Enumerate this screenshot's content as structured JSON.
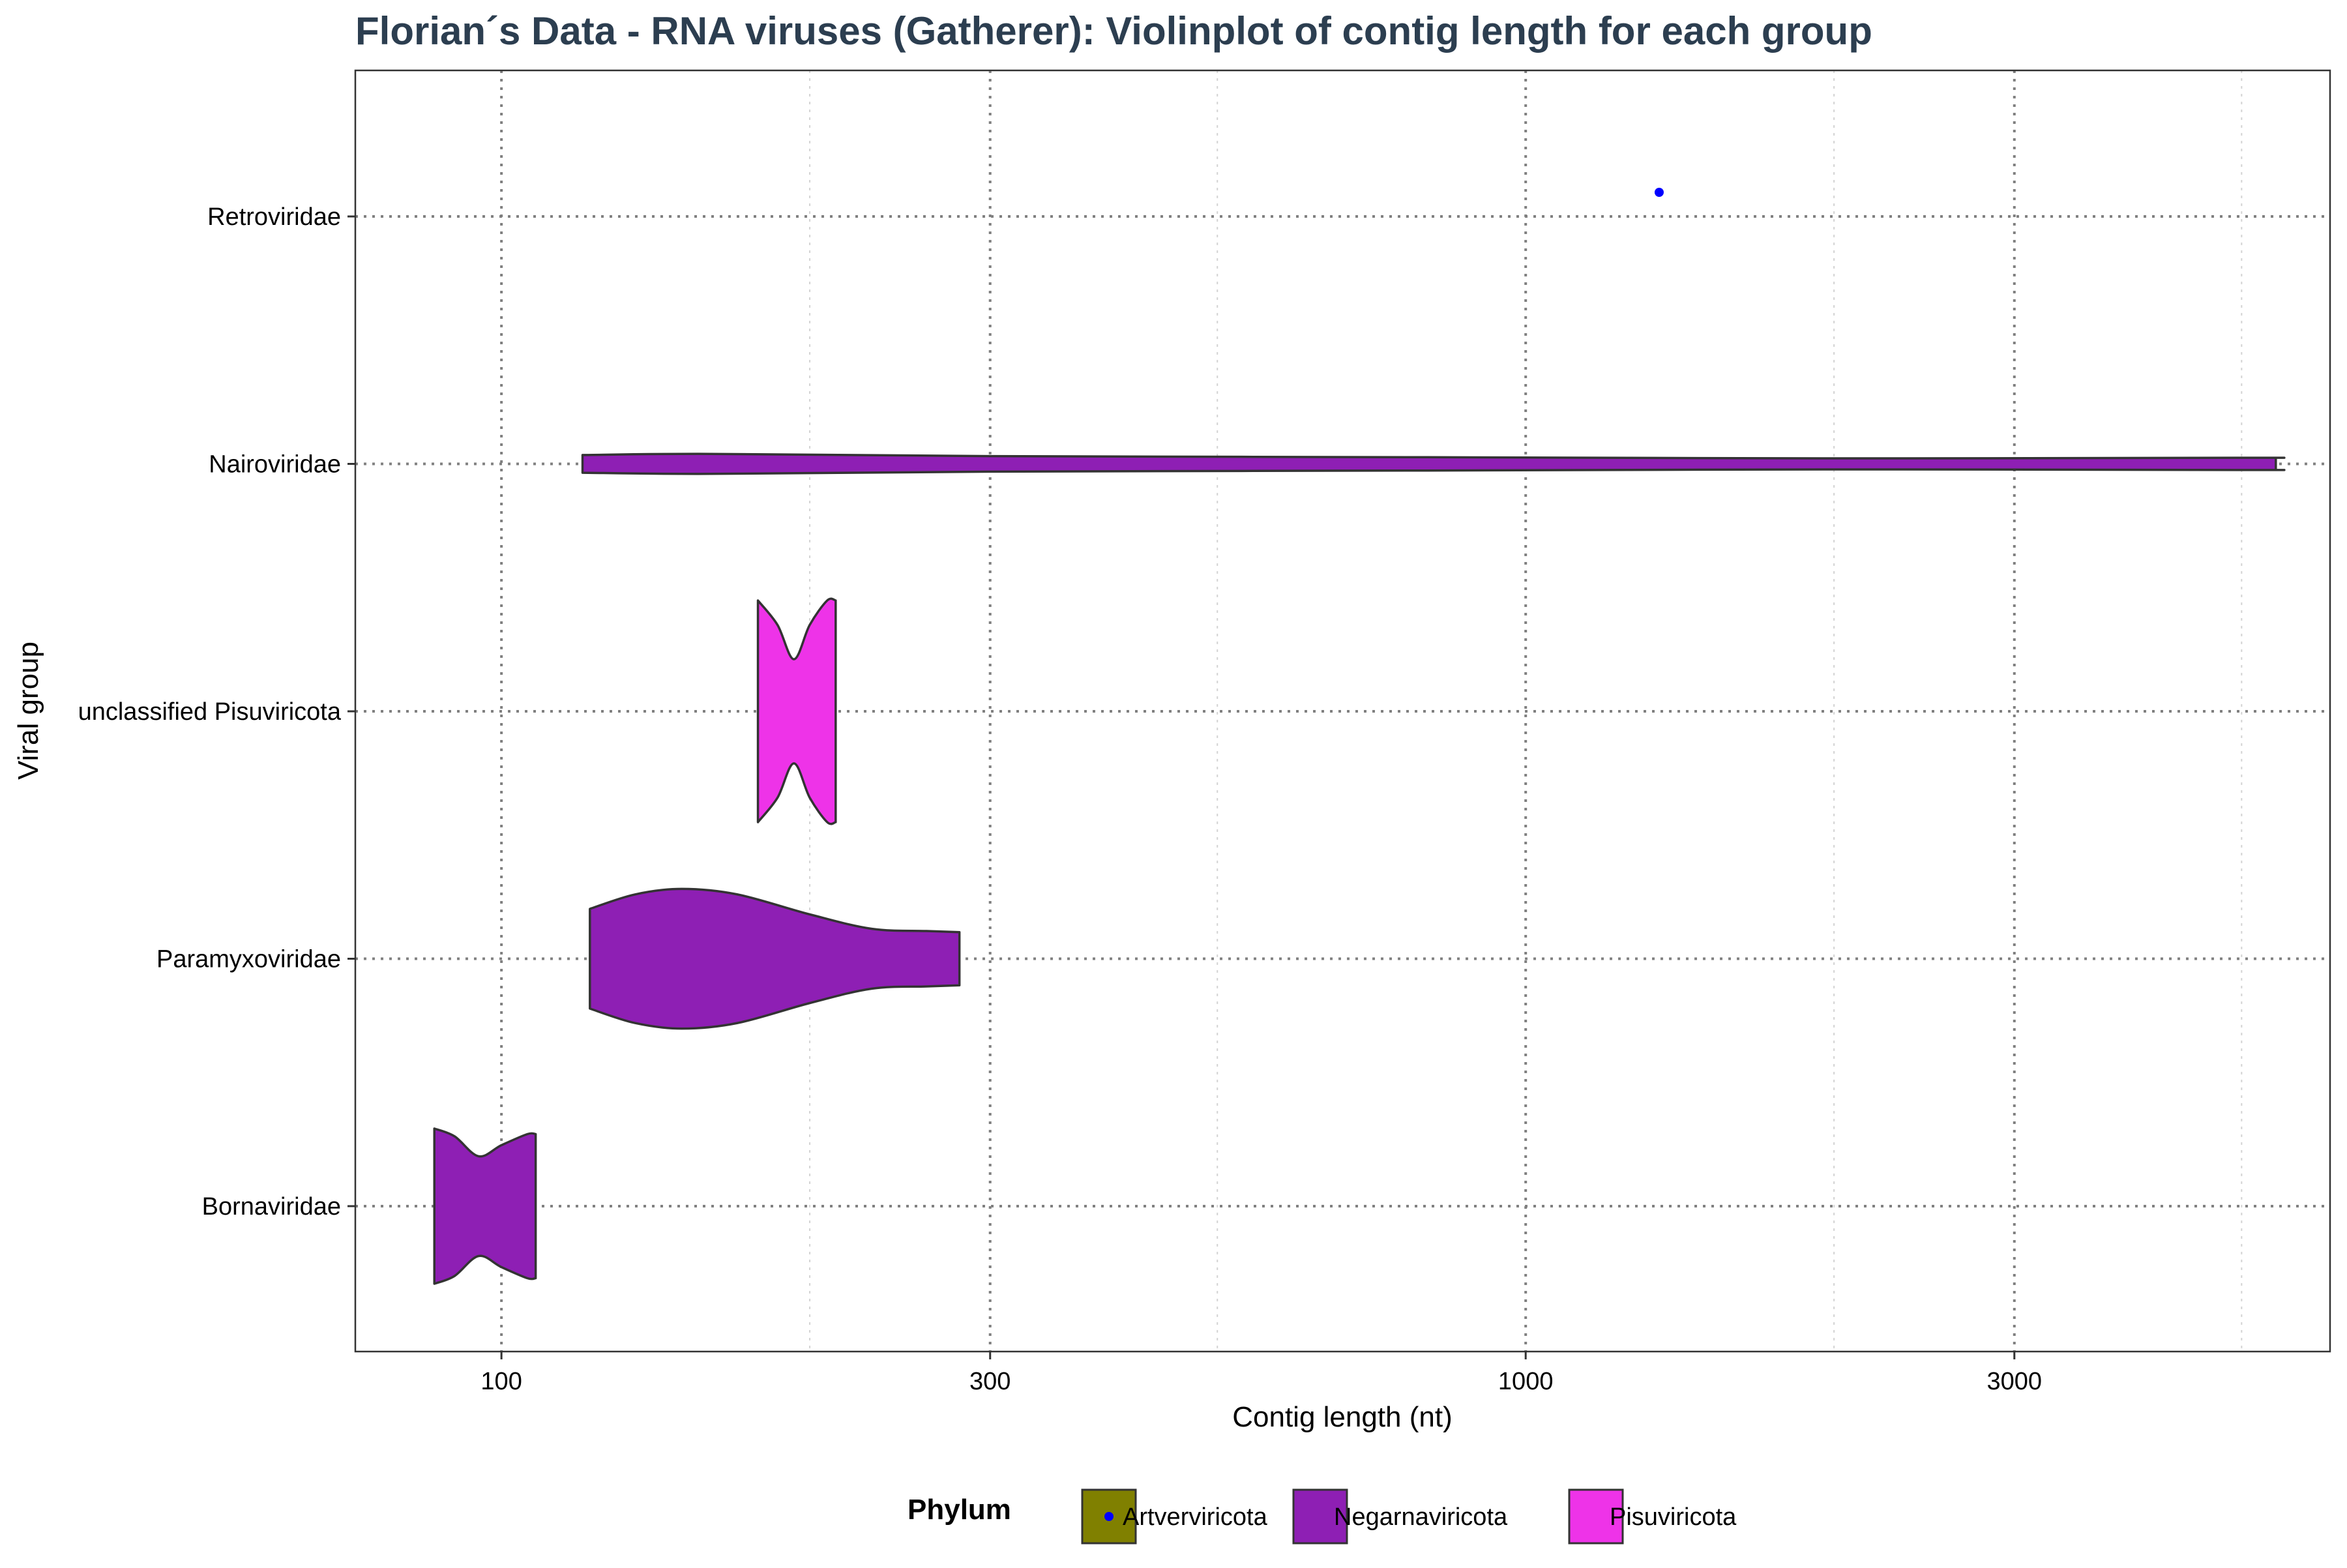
{
  "chart_data": {
    "type": "violin",
    "title": "Florian´s Data - RNA viruses (Gatherer): Violinplot of contig length for each group",
    "xlabel": "Contig length (nt)",
    "ylabel": "Viral group",
    "x_scale": "log10",
    "xlim": [
      72,
      6100
    ],
    "x_ticks": [
      100,
      300,
      1000,
      3000
    ],
    "x_tick_labels": [
      "100",
      "300",
      "1000",
      "3000"
    ],
    "x_minor_ticks": [
      200,
      500,
      2000,
      5000
    ],
    "categories": [
      "Bornaviridae",
      "Paramyxoviridae",
      "unclassified Pisuviricota",
      "Nairoviridae",
      "Retroviridae"
    ],
    "grid": true,
    "legend": {
      "title": "Phylum",
      "position": "bottom",
      "entries": [
        {
          "label": "Artverviricota",
          "fill": "#808000",
          "key": "point"
        },
        {
          "label": "Negarnaviricota",
          "fill": "#8E1FB4",
          "key": "box"
        },
        {
          "label": "Pisuviricota",
          "fill": "#EE33E8",
          "key": "box"
        }
      ]
    },
    "violins": [
      {
        "category": "Bornaviridae",
        "phylum": "Negarnaviricota",
        "fill": "#8E1FB4",
        "profile": [
          [
            86,
            0.7
          ],
          [
            90,
            0.63
          ],
          [
            95,
            0.45
          ],
          [
            100,
            0.55
          ],
          [
            106,
            0.65
          ],
          [
            108,
            0.65
          ]
        ]
      },
      {
        "category": "Paramyxoviridae",
        "phylum": "Negarnaviricota",
        "fill": "#8E1FB4",
        "profile": [
          [
            122,
            0.45
          ],
          [
            135,
            0.58
          ],
          [
            150,
            0.63
          ],
          [
            170,
            0.58
          ],
          [
            200,
            0.4
          ],
          [
            230,
            0.27
          ],
          [
            260,
            0.25
          ],
          [
            280,
            0.24
          ]
        ]
      },
      {
        "category": "unclassified Pisuviricota",
        "phylum": "Pisuviricota",
        "fill": "#EE33E8",
        "profile": [
          [
            178,
            1.0
          ],
          [
            186,
            0.78
          ],
          [
            193,
            0.47
          ],
          [
            200,
            0.78
          ],
          [
            208,
            1.0
          ],
          [
            212,
            1.0
          ]
        ]
      },
      {
        "category": "Nairoviridae",
        "phylum": "Negarnaviricota",
        "fill": "#8E1FB4",
        "profile": [
          [
            120,
            0.08
          ],
          [
            160,
            0.09
          ],
          [
            300,
            0.07
          ],
          [
            800,
            0.06
          ],
          [
            2000,
            0.05
          ],
          [
            5000,
            0.055
          ],
          [
            5400,
            0.055
          ]
        ]
      }
    ],
    "points": [
      {
        "category": "Retroviridae",
        "phylum": "Artverviricota",
        "x": 1350,
        "color": "#0000FF"
      }
    ]
  },
  "colors": {
    "title": "#2C3E50",
    "grid_major": "#808080",
    "grid_minor": "#D3D3D3",
    "outline": "#333333"
  }
}
